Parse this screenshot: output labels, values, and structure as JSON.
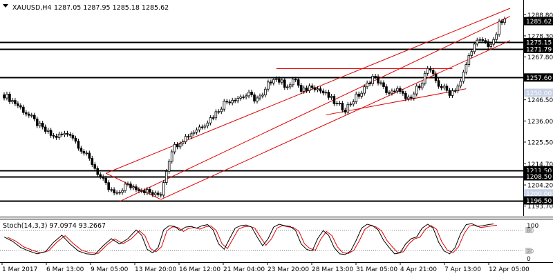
{
  "header": {
    "symbol_label": "XAUUSD,H4",
    "ohlc_text": "1287.05 1287.95 1285.18 1285.62"
  },
  "stoch": {
    "label": "Stoch(14,3,3) 97.0974 93.2667",
    "level_labels": [
      "100",
      "80",
      "20",
      "0"
    ]
  },
  "colors": {
    "background": "#ffffff",
    "candle": "#000000",
    "hline": "#000000",
    "channel": "#e00000",
    "stoch_main": "#000000",
    "stoch_signal": "#e00000",
    "price_label_bg": "#000000",
    "price_label_fg": "#ffffff",
    "ghost_label_bg": "#c8d2e6"
  },
  "chart_data": {
    "type": "candlestick",
    "title": "XAUUSD,H4",
    "ylim": [
      1190.5,
      1292.0
    ],
    "price_ticks": [
      "1288.80",
      "1278.30",
      "1267.80",
      "1257.30",
      "1246.50",
      "1236.00",
      "1225.50",
      "1214.70",
      "1204.20",
      "1193.70"
    ],
    "time_labels": [
      "1 Mar 2017",
      "6 Mar 13:00",
      "9 Mar 05:00",
      "13 Mar 20:00",
      "16 Mar 12:00",
      "21 Mar 04:00",
      "23 Mar 20:00",
      "28 Mar 13:00",
      "31 Mar 05:00",
      "4 Apr 21:00",
      "7 Apr 13:00",
      "12 Apr 05:00"
    ],
    "current_price": {
      "value": 1285.62,
      "label": "1285.62"
    },
    "horizontal_levels": [
      {
        "value": 1275.15,
        "label": "1275.15"
      },
      {
        "value": 1271.79,
        "label": "1271.79"
      },
      {
        "value": 1257.6,
        "label": "1257.60"
      },
      {
        "value": 1211.5,
        "label": "1211.50"
      },
      {
        "value": 1208.5,
        "label": "1208.50"
      },
      {
        "value": 1196.5,
        "label": "1196.50"
      }
    ],
    "ghost_levels": [
      {
        "value": 1250.0,
        "label": "1250.00"
      },
      {
        "value": 1200.0,
        "label": "1200.00"
      }
    ],
    "candle_close_path": [
      [
        0,
        1249
      ],
      [
        4,
        1245
      ],
      [
        8,
        1240
      ],
      [
        14,
        1232
      ],
      [
        18,
        1228
      ],
      [
        24,
        1230
      ],
      [
        28,
        1222
      ],
      [
        32,
        1215
      ],
      [
        35,
        1208
      ],
      [
        38,
        1202
      ],
      [
        41,
        1199
      ],
      [
        44,
        1204
      ],
      [
        48,
        1203
      ],
      [
        52,
        1201
      ],
      [
        55,
        1199
      ],
      [
        57,
        1200
      ],
      [
        59,
        1212
      ],
      [
        61,
        1222
      ],
      [
        64,
        1226
      ],
      [
        67,
        1229
      ],
      [
        70,
        1232
      ],
      [
        72,
        1234
      ],
      [
        74,
        1236
      ],
      [
        77,
        1240
      ],
      [
        80,
        1245
      ],
      [
        83,
        1247
      ],
      [
        86,
        1248
      ],
      [
        89,
        1249
      ],
      [
        91,
        1247
      ],
      [
        94,
        1248
      ],
      [
        96,
        1254
      ],
      [
        98,
        1258
      ],
      [
        100,
        1256
      ],
      [
        102,
        1254
      ],
      [
        104,
        1254
      ],
      [
        106,
        1257
      ],
      [
        108,
        1250
      ],
      [
        110,
        1252
      ],
      [
        112,
        1254
      ],
      [
        114,
        1252
      ],
      [
        116,
        1250
      ],
      [
        118,
        1248
      ],
      [
        121,
        1244
      ],
      [
        124,
        1242
      ],
      [
        126,
        1245
      ],
      [
        128,
        1248
      ],
      [
        130,
        1250
      ],
      [
        132,
        1254
      ],
      [
        134,
        1258
      ],
      [
        136,
        1256
      ],
      [
        138,
        1252
      ],
      [
        140,
        1250
      ],
      [
        142,
        1250
      ],
      [
        144,
        1252
      ],
      [
        146,
        1246
      ],
      [
        148,
        1247
      ],
      [
        150,
        1252
      ],
      [
        152,
        1256
      ],
      [
        154,
        1262
      ],
      [
        156,
        1258
      ],
      [
        158,
        1254
      ],
      [
        160,
        1252
      ],
      [
        162,
        1250
      ],
      [
        164,
        1252
      ],
      [
        166,
        1255
      ],
      [
        168,
        1264
      ],
      [
        170,
        1272
      ],
      [
        172,
        1275
      ],
      [
        174,
        1276
      ],
      [
        176,
        1274
      ],
      [
        178,
        1275
      ],
      [
        180,
        1284
      ],
      [
        182,
        1286
      ]
    ],
    "channel_lines": [
      {
        "from": [
          37,
          1210
        ],
        "to": [
          184,
          1292
        ]
      },
      {
        "from": [
          42,
          1196
        ],
        "to": [
          184,
          1288
        ]
      },
      {
        "from": [
          57,
          1197
        ],
        "to": [
          184,
          1276
        ]
      }
    ],
    "triangle_lines": [
      {
        "from": [
          37,
          1210
        ],
        "to": [
          57,
          1197
        ]
      },
      {
        "from": [
          99,
          1262
        ],
        "to": [
          163,
          1262
        ]
      },
      {
        "from": [
          117,
          1239
        ],
        "to": [
          168,
          1252
        ]
      }
    ],
    "stoch_main": [
      [
        0,
        60
      ],
      [
        3,
        48
      ],
      [
        6,
        30
      ],
      [
        9,
        20
      ],
      [
        12,
        12
      ],
      [
        15,
        18
      ],
      [
        18,
        45
      ],
      [
        21,
        65
      ],
      [
        24,
        40
      ],
      [
        27,
        20
      ],
      [
        30,
        12
      ],
      [
        33,
        10
      ],
      [
        36,
        35
      ],
      [
        39,
        55
      ],
      [
        42,
        40
      ],
      [
        45,
        55
      ],
      [
        48,
        80
      ],
      [
        50,
        65
      ],
      [
        52,
        25
      ],
      [
        54,
        15
      ],
      [
        56,
        30
      ],
      [
        58,
        80
      ],
      [
        60,
        92
      ],
      [
        62,
        90
      ],
      [
        64,
        78
      ],
      [
        66,
        88
      ],
      [
        68,
        90
      ],
      [
        70,
        85
      ],
      [
        72,
        92
      ],
      [
        74,
        95
      ],
      [
        76,
        80
      ],
      [
        78,
        40
      ],
      [
        80,
        25
      ],
      [
        82,
        55
      ],
      [
        84,
        85
      ],
      [
        86,
        92
      ],
      [
        88,
        94
      ],
      [
        90,
        88
      ],
      [
        92,
        60
      ],
      [
        94,
        35
      ],
      [
        96,
        55
      ],
      [
        98,
        88
      ],
      [
        100,
        96
      ],
      [
        102,
        92
      ],
      [
        104,
        90
      ],
      [
        106,
        78
      ],
      [
        108,
        40
      ],
      [
        110,
        25
      ],
      [
        112,
        20
      ],
      [
        114,
        55
      ],
      [
        116,
        78
      ],
      [
        118,
        65
      ],
      [
        120,
        30
      ],
      [
        122,
        12
      ],
      [
        124,
        10
      ],
      [
        126,
        20
      ],
      [
        128,
        50
      ],
      [
        130,
        85
      ],
      [
        132,
        96
      ],
      [
        134,
        92
      ],
      [
        136,
        80
      ],
      [
        138,
        50
      ],
      [
        140,
        30
      ],
      [
        142,
        12
      ],
      [
        144,
        15
      ],
      [
        146,
        40
      ],
      [
        148,
        55
      ],
      [
        150,
        60
      ],
      [
        152,
        85
      ],
      [
        154,
        96
      ],
      [
        156,
        85
      ],
      [
        158,
        45
      ],
      [
        160,
        20
      ],
      [
        162,
        12
      ],
      [
        164,
        30
      ],
      [
        166,
        70
      ],
      [
        168,
        95
      ],
      [
        170,
        98
      ],
      [
        172,
        90
      ],
      [
        174,
        92
      ],
      [
        176,
        95
      ],
      [
        178,
        97
      ]
    ],
    "stoch_signal_lag": 1.2
  }
}
